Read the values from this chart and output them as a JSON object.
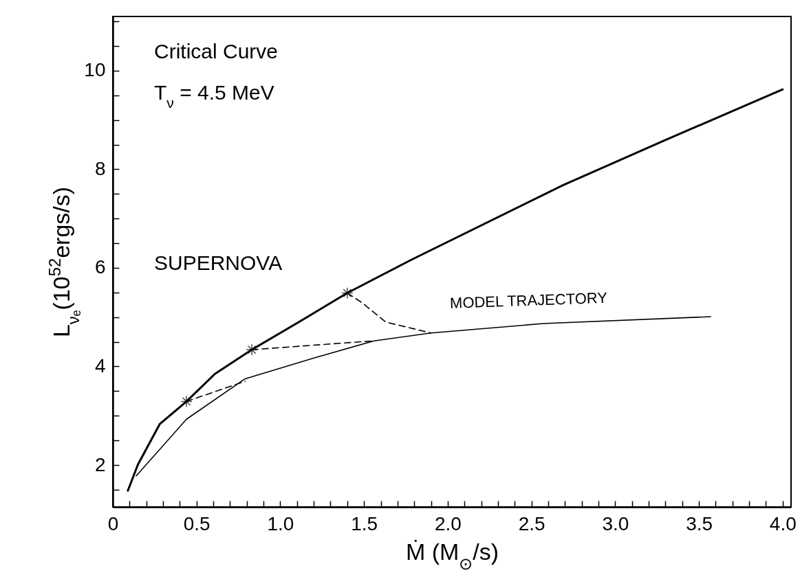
{
  "chart_data": {
    "type": "line",
    "xlabel": "Ṁ  (M$_{⊙}$/s)",
    "ylabel": "L$_{νₑ}$(10$^{52}$ergs/s)",
    "annotations": [
      "Critical Curve",
      "T$_{ν}$ = 4.5 MeV",
      "SUPERNOVA"
    ],
    "xlim": [
      0,
      4.05
    ],
    "ylim": [
      1.15,
      11.1
    ],
    "xticks": [
      0,
      {
        "value": 0.1,
        "label": null
      },
      {
        "value": 0.2,
        "label": null
      },
      {
        "value": 0.3,
        "label": null
      },
      {
        "value": 0.4,
        "label": null
      },
      0.5,
      {
        "value": 0.6,
        "label": null
      },
      {
        "value": 0.7,
        "label": null
      },
      {
        "value": 0.8,
        "label": null
      },
      {
        "value": 0.9,
        "label": null
      },
      {
        "value": 1,
        "label": "1.0"
      },
      {
        "value": 1.1,
        "label": null
      },
      {
        "value": 1.2,
        "label": null
      },
      {
        "value": 1.3,
        "label": null
      },
      {
        "value": 1.4,
        "label": null
      },
      1.5,
      {
        "value": 1.6,
        "label": null
      },
      {
        "value": 1.7,
        "label": null
      },
      {
        "value": 1.8,
        "label": null
      },
      {
        "value": 1.9,
        "label": null
      },
      {
        "value": 2,
        "label": "2.0"
      },
      {
        "value": 2.1,
        "label": null
      },
      {
        "value": 2.2,
        "label": null
      },
      {
        "value": 2.3,
        "label": null
      },
      {
        "value": 2.4,
        "label": null
      },
      2.5,
      {
        "value": 2.6,
        "label": null
      },
      {
        "value": 2.7,
        "label": null
      },
      {
        "value": 2.8,
        "label": null
      },
      {
        "value": 2.9,
        "label": null
      },
      {
        "value": 3,
        "label": "3.0"
      },
      {
        "value": 3.1,
        "label": null
      },
      {
        "value": 3.2,
        "label": null
      },
      {
        "value": 3.3,
        "label": null
      },
      {
        "value": 3.4,
        "label": null
      },
      3.5,
      {
        "value": 3.6,
        "label": null
      },
      {
        "value": 3.7,
        "label": null
      },
      {
        "value": 3.8,
        "label": null
      },
      {
        "value": 3.9,
        "label": null
      },
      {
        "value": 4,
        "label": "4.0"
      }
    ],
    "yticks": [
      {
        "value": 1.5,
        "label": null
      },
      2,
      {
        "value": 2.5,
        "label": null
      },
      {
        "value": 3,
        "label": null
      },
      {
        "value": 3.5,
        "label": null
      },
      4,
      {
        "value": 4.5,
        "label": null
      },
      {
        "value": 5,
        "label": null
      },
      {
        "value": 5.5,
        "label": null
      },
      6,
      {
        "value": 6.5,
        "label": null
      },
      {
        "value": 7,
        "label": null
      },
      {
        "value": 7.5,
        "label": null
      },
      8,
      {
        "value": 8.5,
        "label": null
      },
      {
        "value": 9,
        "label": null
      },
      {
        "value": 9.5,
        "label": null
      },
      10,
      {
        "value": 10.5,
        "label": null
      },
      {
        "value": 11,
        "label": null
      }
    ],
    "grid": false,
    "series": [
      {
        "type": "line",
        "color": "#000000",
        "line_style": "solid",
        "x": [
          0.09,
          0.15,
          0.28,
          0.44,
          0.61,
          0.83,
          1.12,
          1.4,
          1.78,
          2.69,
          3.29,
          4.0
        ],
        "values": [
          1.48,
          2.01,
          2.83,
          3.29,
          3.85,
          4.34,
          4.92,
          5.49,
          6.16,
          7.68,
          8.58,
          9.62
        ]
      },
      {
        "type": "line",
        "name": "MODEL TRAJECTORY",
        "color": "#000000",
        "line_style": "solid",
        "x": [
          3.57,
          2.57,
          1.9,
          1.56,
          1.2,
          0.79,
          0.44,
          0.14
        ],
        "values": [
          5.01,
          4.87,
          4.68,
          4.52,
          4.17,
          3.75,
          2.93,
          1.78
        ]
      },
      {
        "type": "line",
        "color": "#000000",
        "line_style": "dashed",
        "x": [
          1.4,
          1.49,
          1.63,
          1.9
        ],
        "values": [
          5.49,
          5.29,
          4.9,
          4.68
        ]
      },
      {
        "type": "line",
        "color": "#000000",
        "line_style": "dashed",
        "x": [
          0.83,
          1.56
        ],
        "values": [
          4.34,
          4.52
        ]
      },
      {
        "type": "line",
        "color": "#000000",
        "line_style": "dashed",
        "x": [
          0.44,
          0.79
        ],
        "values": [
          3.29,
          3.7
        ]
      },
      {
        "type": "scatter",
        "color": "#000000",
        "marker": "cross",
        "x": [
          0.44,
          0.83,
          1.4
        ],
        "values": [
          3.29,
          4.34,
          5.49
        ]
      }
    ]
  }
}
